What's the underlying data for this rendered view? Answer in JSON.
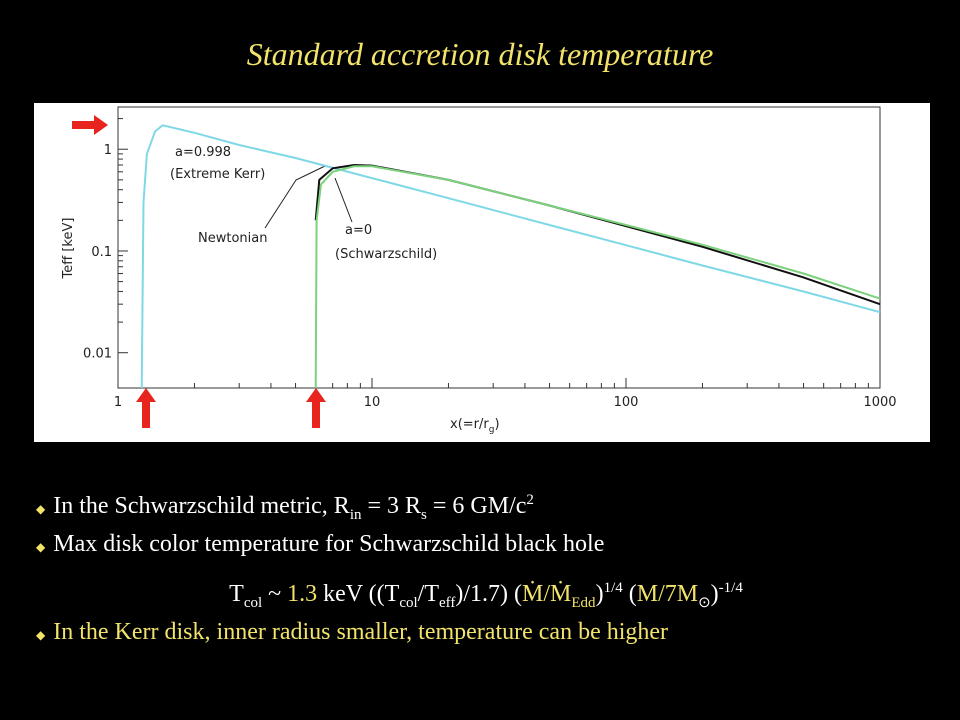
{
  "slide": {
    "title": "Standard accretion disk temperature",
    "bullets": [
      {
        "color": "#ffffff",
        "segments": [
          {
            "text": "In the Schwarzschild metric, R"
          },
          {
            "sub": "in"
          },
          {
            "text": " = 3 R"
          },
          {
            "sub": "s"
          },
          {
            "text": " = 6 GM/c"
          },
          {
            "sup": "2"
          }
        ]
      },
      {
        "color": "#ffffff",
        "segments": [
          {
            "text": "Max disk color temperature for Schwarzschild black hole"
          }
        ]
      },
      {
        "color": "#ffffff",
        "segments": [
          {
            "text": "T"
          },
          {
            "sub": "col"
          },
          {
            "text": " ~ "
          },
          {
            "text": "1.3",
            "color": "#f2e36a"
          },
          {
            "text": " keV ((T"
          },
          {
            "sub": "col"
          },
          {
            "text": "/T"
          },
          {
            "sub": "eff"
          },
          {
            "text": ")/1.7) ("
          },
          {
            "text": "Ṁ/Ṁ",
            "color": "#f2e36a"
          },
          {
            "sub": "Edd",
            "color": "#f2e36a"
          },
          {
            "text": ")"
          },
          {
            "sup": "1/4"
          },
          {
            "text": " ("
          },
          {
            "text": "M/7M",
            "color": "#f2e36a"
          },
          {
            "sub": "⊙"
          },
          {
            "text": ")"
          },
          {
            "sup": "-1/4"
          }
        ]
      },
      {
        "color": "#f2e36a",
        "segments": [
          {
            "text": "In the Kerr disk, inner radius smaller, temperature can be higher"
          }
        ]
      }
    ]
  },
  "chart_data": {
    "type": "line",
    "log_x": true,
    "log_y": true,
    "ylabel": "Teff [keV]",
    "xlabel": {
      "text": "x(=r/r",
      "sub": "g",
      "tail": ")"
    },
    "xlim": [
      1,
      1000
    ],
    "ylim": [
      0.0045,
      2.6
    ],
    "xticks": [
      1,
      10,
      100,
      1000
    ],
    "yticks": [
      0.01,
      0.1,
      1
    ],
    "annotations": [
      "a=0.998",
      "(Extreme Kerr)",
      "Newtonian",
      "a=0",
      "(Schwarzschild)"
    ],
    "series": [
      {
        "name": "Extreme Kerr",
        "color": "#7fd8e6",
        "x": [
          1.24,
          1.26,
          1.3,
          1.4,
          1.5,
          2,
          3,
          5,
          10,
          20,
          50,
          100,
          200,
          500,
          1000
        ],
        "values": [
          0.0045,
          0.3,
          0.9,
          1.5,
          1.72,
          1.45,
          1.1,
          0.82,
          0.52,
          0.33,
          0.18,
          0.114,
          0.072,
          0.04,
          0.025
        ]
      },
      {
        "name": "Newtonian",
        "color": "#111111",
        "x": [
          6,
          6.2,
          7,
          8.5,
          10,
          20,
          50,
          100,
          200,
          500,
          1000
        ],
        "values": [
          0.2,
          0.5,
          0.65,
          0.7,
          0.69,
          0.5,
          0.28,
          0.175,
          0.11,
          0.055,
          0.03
        ]
      },
      {
        "name": "Schwarzschild",
        "color": "#7cd17c",
        "x": [
          6,
          6.05,
          6.3,
          7,
          8.5,
          10,
          20,
          50,
          100,
          200,
          500,
          1000
        ],
        "values": [
          0.0045,
          0.2,
          0.45,
          0.6,
          0.68,
          0.68,
          0.5,
          0.28,
          0.18,
          0.115,
          0.06,
          0.034
        ]
      }
    ]
  }
}
